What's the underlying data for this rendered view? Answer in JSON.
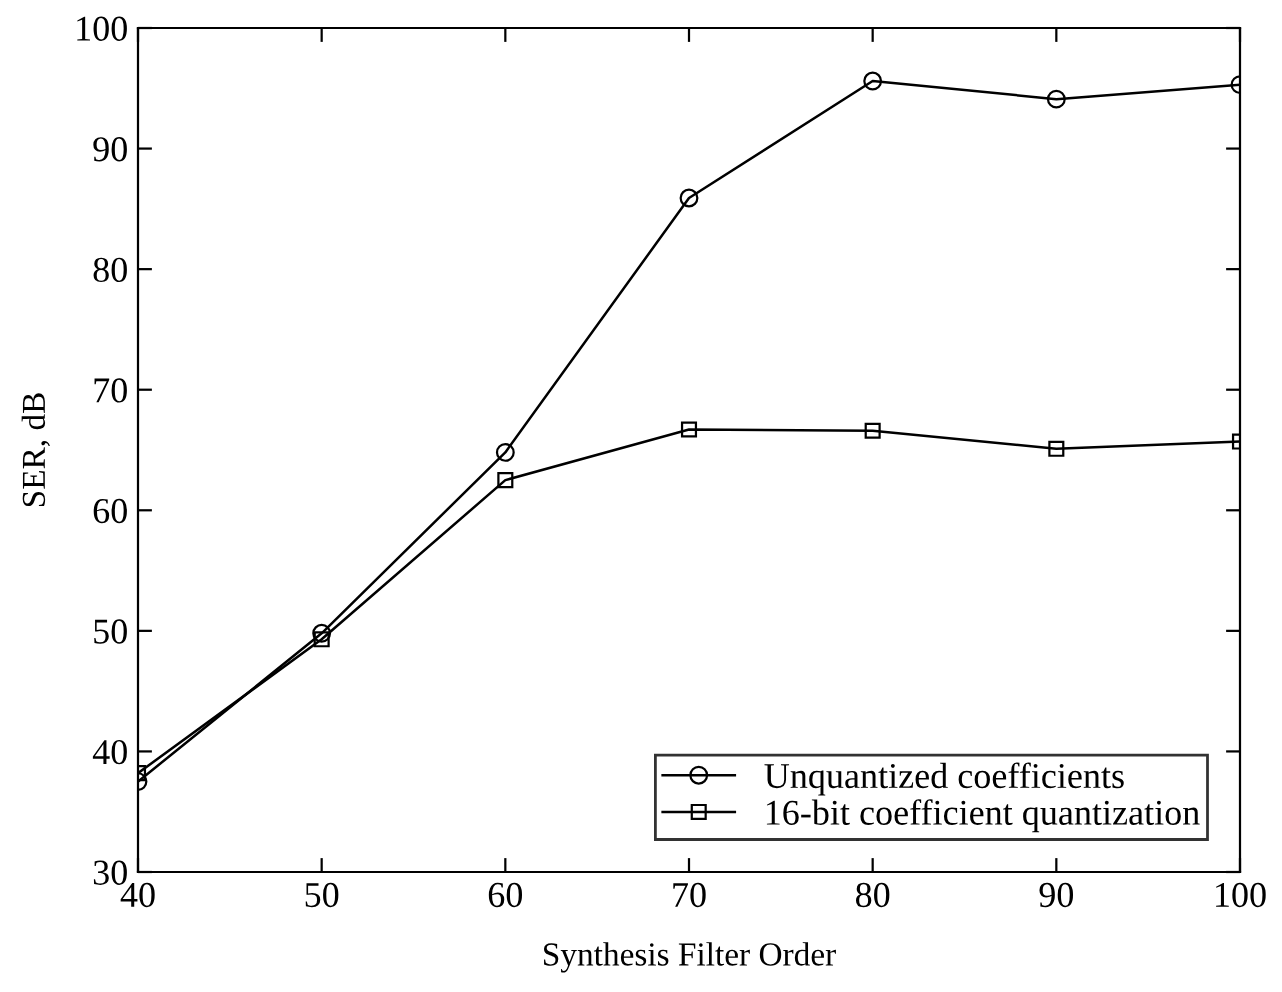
{
  "chart_data": {
    "type": "line",
    "xlabel": "Synthesis Filter Order",
    "ylabel": "SER, dB",
    "x": [
      40,
      50,
      60,
      70,
      80,
      90,
      100
    ],
    "series": [
      {
        "name": "Unquantized coefficients",
        "color": "#000000",
        "marker": "circle",
        "values": [
          37.5,
          49.8,
          64.8,
          85.9,
          95.6,
          94.1,
          95.3
        ]
      },
      {
        "name": "16-bit coefficient quantization",
        "color": "#000000",
        "marker": "square",
        "values": [
          38.2,
          49.3,
          62.5,
          66.7,
          66.6,
          65.1,
          65.7
        ]
      }
    ],
    "xlim": [
      40,
      100
    ],
    "xticks": [
      40,
      50,
      60,
      70,
      80,
      90,
      100
    ],
    "ylim": [
      30,
      100
    ],
    "yticks": [
      30,
      40,
      50,
      60,
      70,
      80,
      90,
      100
    ],
    "grid": false,
    "legend": "bottom right",
    "line_style": "solid"
  }
}
